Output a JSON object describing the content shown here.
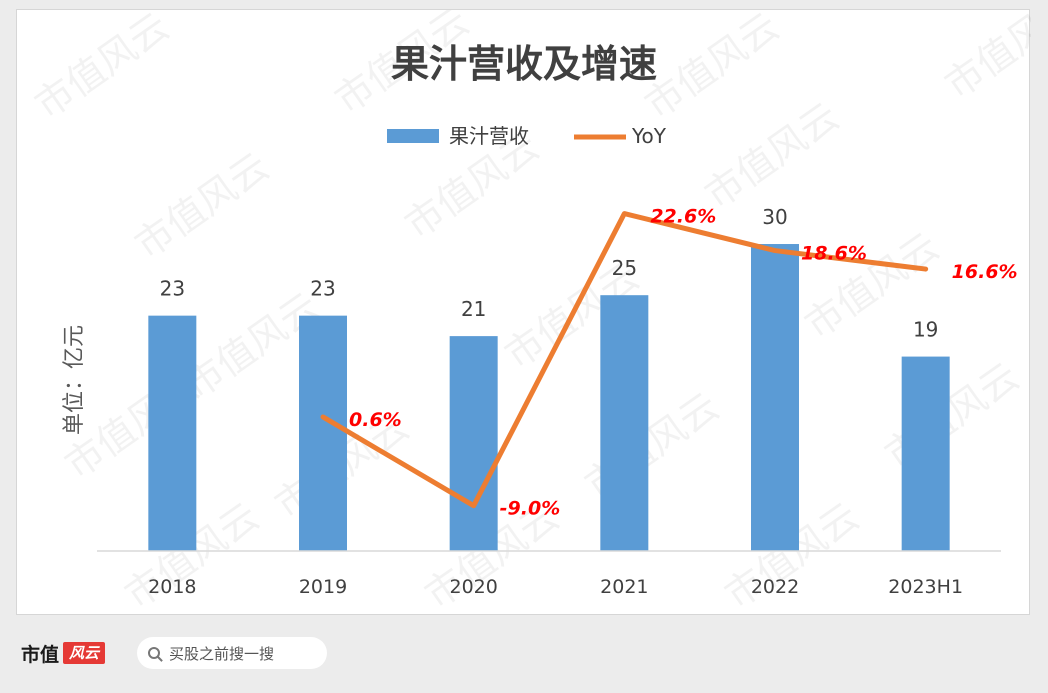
{
  "chart_data": {
    "type": "bar",
    "title": "果汁营收及增速",
    "ylabel": "单位：亿元",
    "categories": [
      "2018",
      "2019",
      "2020",
      "2021",
      "2022",
      "2023H1"
    ],
    "series": [
      {
        "name": "果汁营收",
        "type": "bar",
        "values": [
          23,
          23,
          21,
          25,
          30,
          19
        ],
        "labels": [
          "23",
          "23",
          "21",
          "25",
          "30",
          "19"
        ]
      },
      {
        "name": "YoY",
        "type": "line",
        "values": [
          null,
          0.6,
          -9.0,
          22.6,
          18.6,
          16.6
        ],
        "labels": [
          "",
          "0.6%",
          "-9.0%",
          "22.6%",
          "18.6%",
          "16.6%"
        ]
      }
    ],
    "ylim": [
      0,
      43
    ],
    "y2lim": [
      -13.9,
      33.7
    ],
    "legend": "top",
    "grid": false,
    "colors": {
      "bar": "#5b9bd5",
      "line": "#ed7d31",
      "yoy_label": "#ff0000"
    }
  },
  "watermark": "市值风云",
  "footer": {
    "brand": "市值",
    "brand_logo": "风云",
    "search_placeholder": "买股之前搜一搜"
  }
}
